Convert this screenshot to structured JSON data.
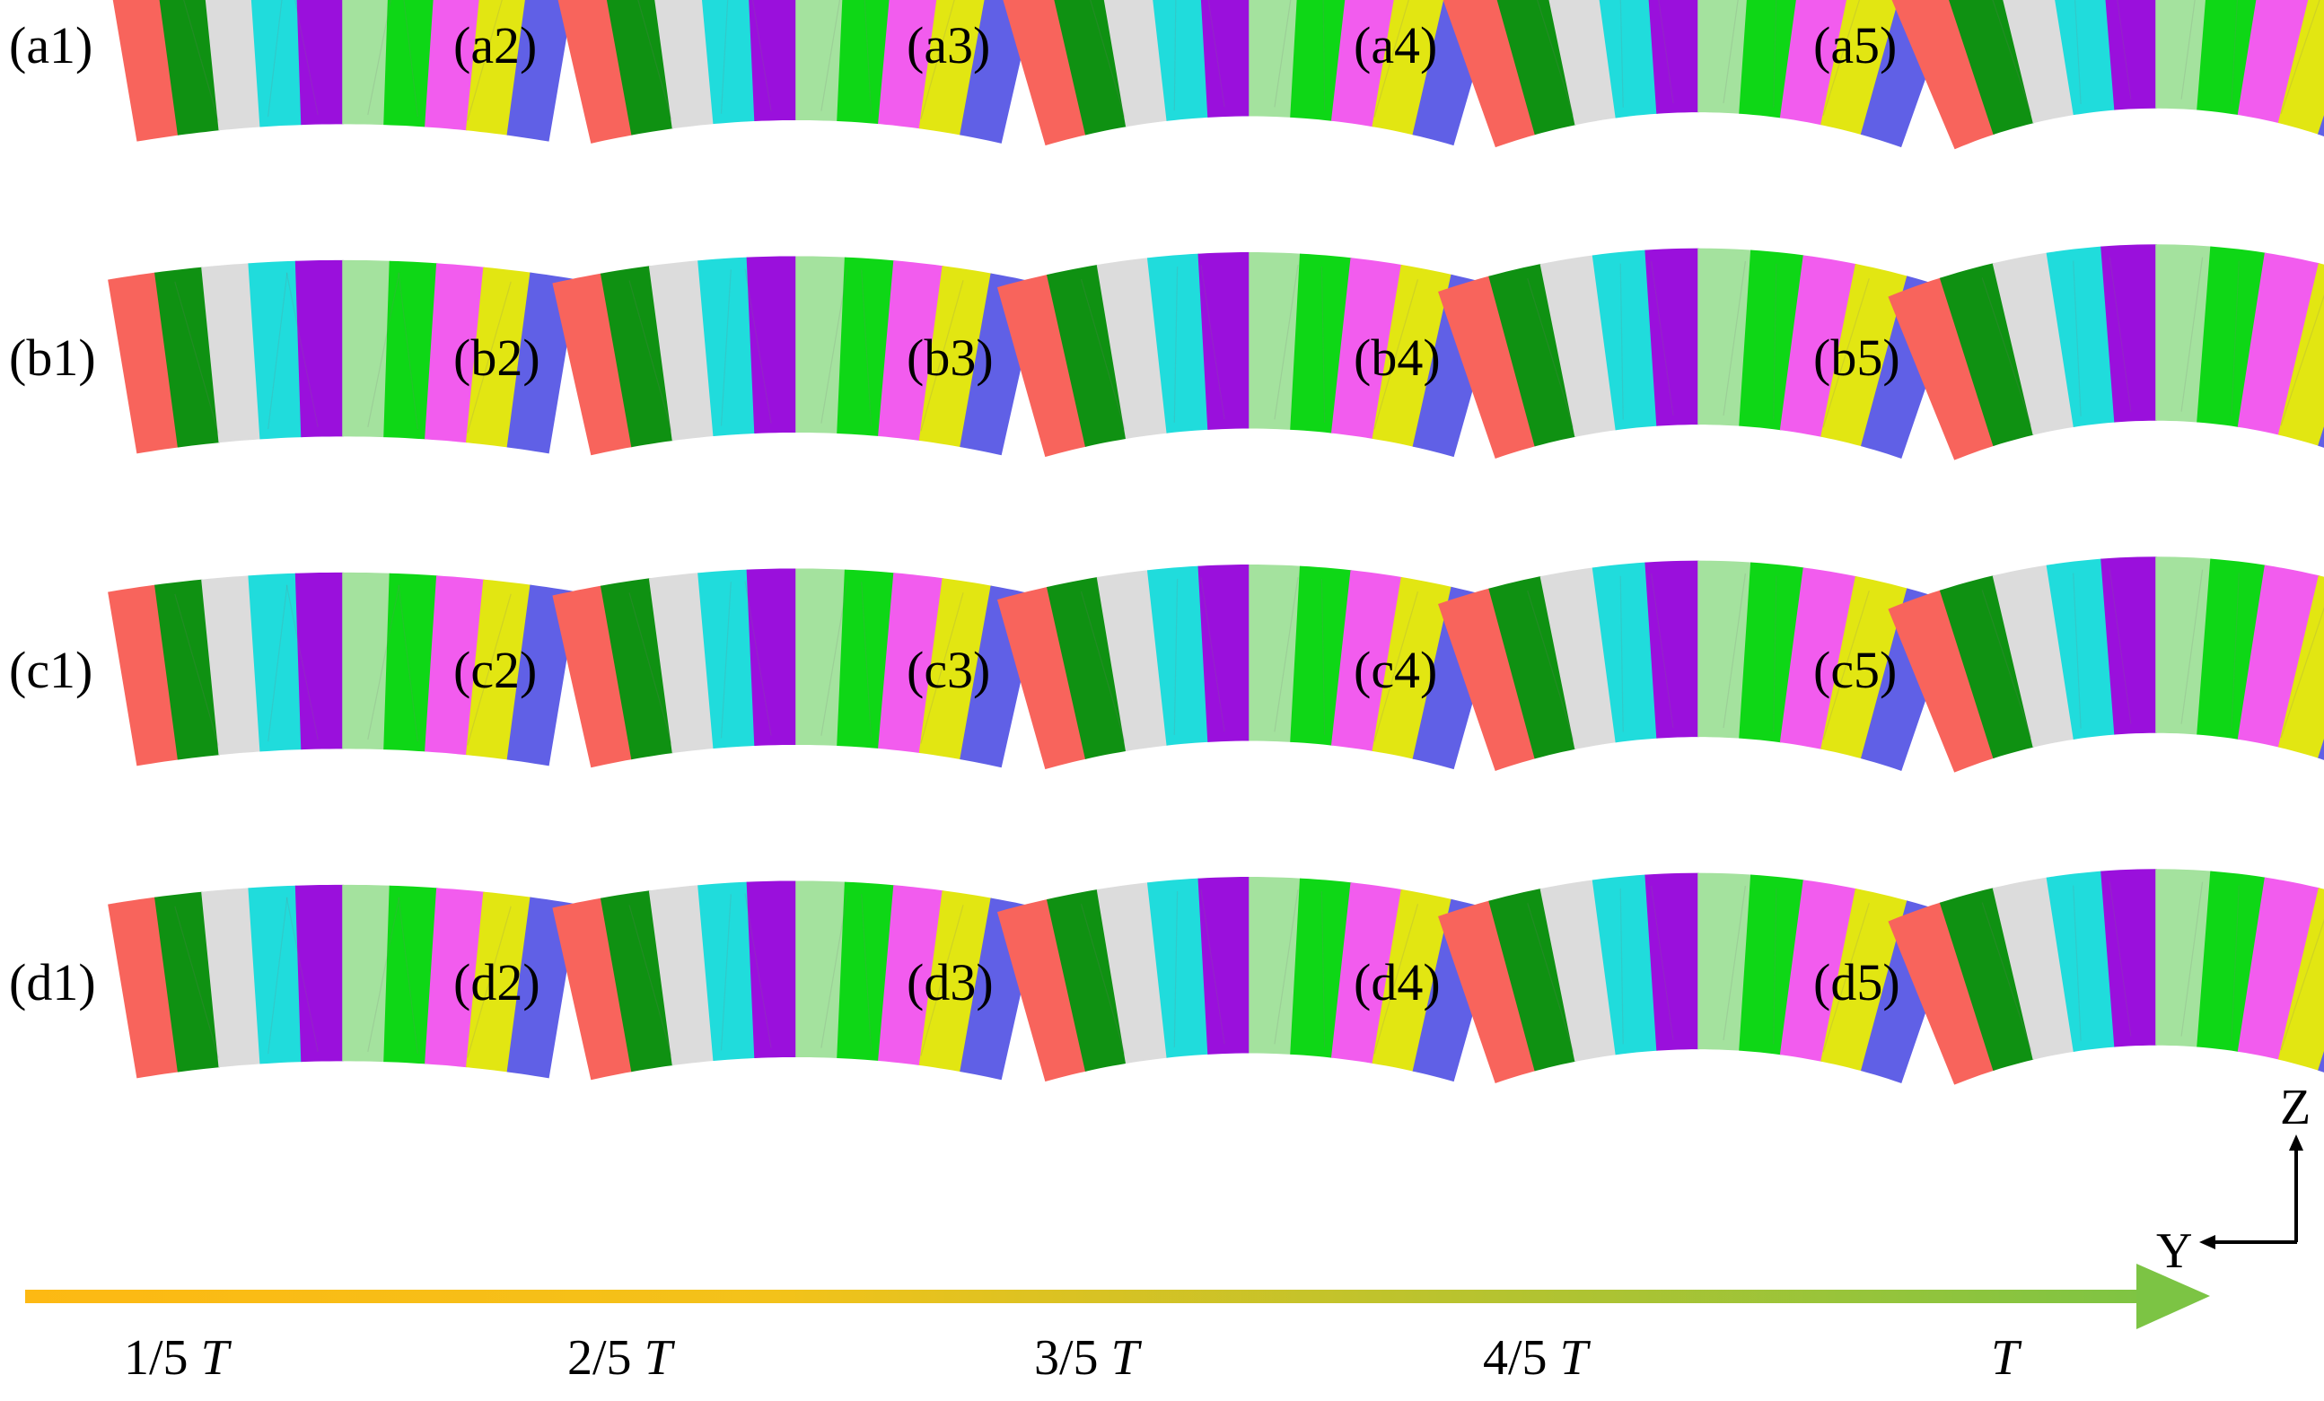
{
  "palette": [
    "#f8645c",
    "#0f9112",
    "#dcdcdc",
    "#20dcdc",
    "#9a10dc",
    "#a4e29e",
    "#0ed716",
    "#f25cee",
    "#e2e612",
    "#6060e6"
  ],
  "rows": [
    {
      "id": "a",
      "panels": [
        "(a1)",
        "(a2)",
        "(a3)",
        "(a4)",
        "(a5)"
      ]
    },
    {
      "id": "b",
      "panels": [
        "(b1)",
        "(b2)",
        "(b3)",
        "(b4)",
        "(b5)"
      ]
    },
    {
      "id": "c",
      "panels": [
        "(c1)",
        "(c2)",
        "(c3)",
        "(c4)",
        "(c5)"
      ]
    },
    {
      "id": "d",
      "panels": [
        "(d1)",
        "(d2)",
        "(d3)",
        "(d4)",
        "(d5)"
      ]
    }
  ],
  "bending_progress": [
    0.2,
    0.4,
    0.6,
    0.8,
    1.0
  ],
  "time_axis": {
    "ticks": [
      {
        "frac": "1/5 ",
        "sym": "T"
      },
      {
        "frac": "2/5 ",
        "sym": "T"
      },
      {
        "frac": "3/5 ",
        "sym": "T"
      },
      {
        "frac": "4/5 ",
        "sym": "T"
      },
      {
        "frac": "",
        "sym": "T"
      }
    ],
    "gradient_start": "#fdb913",
    "gradient_end": "#7cc444"
  },
  "axes": {
    "z": "Z",
    "y": "Y"
  }
}
